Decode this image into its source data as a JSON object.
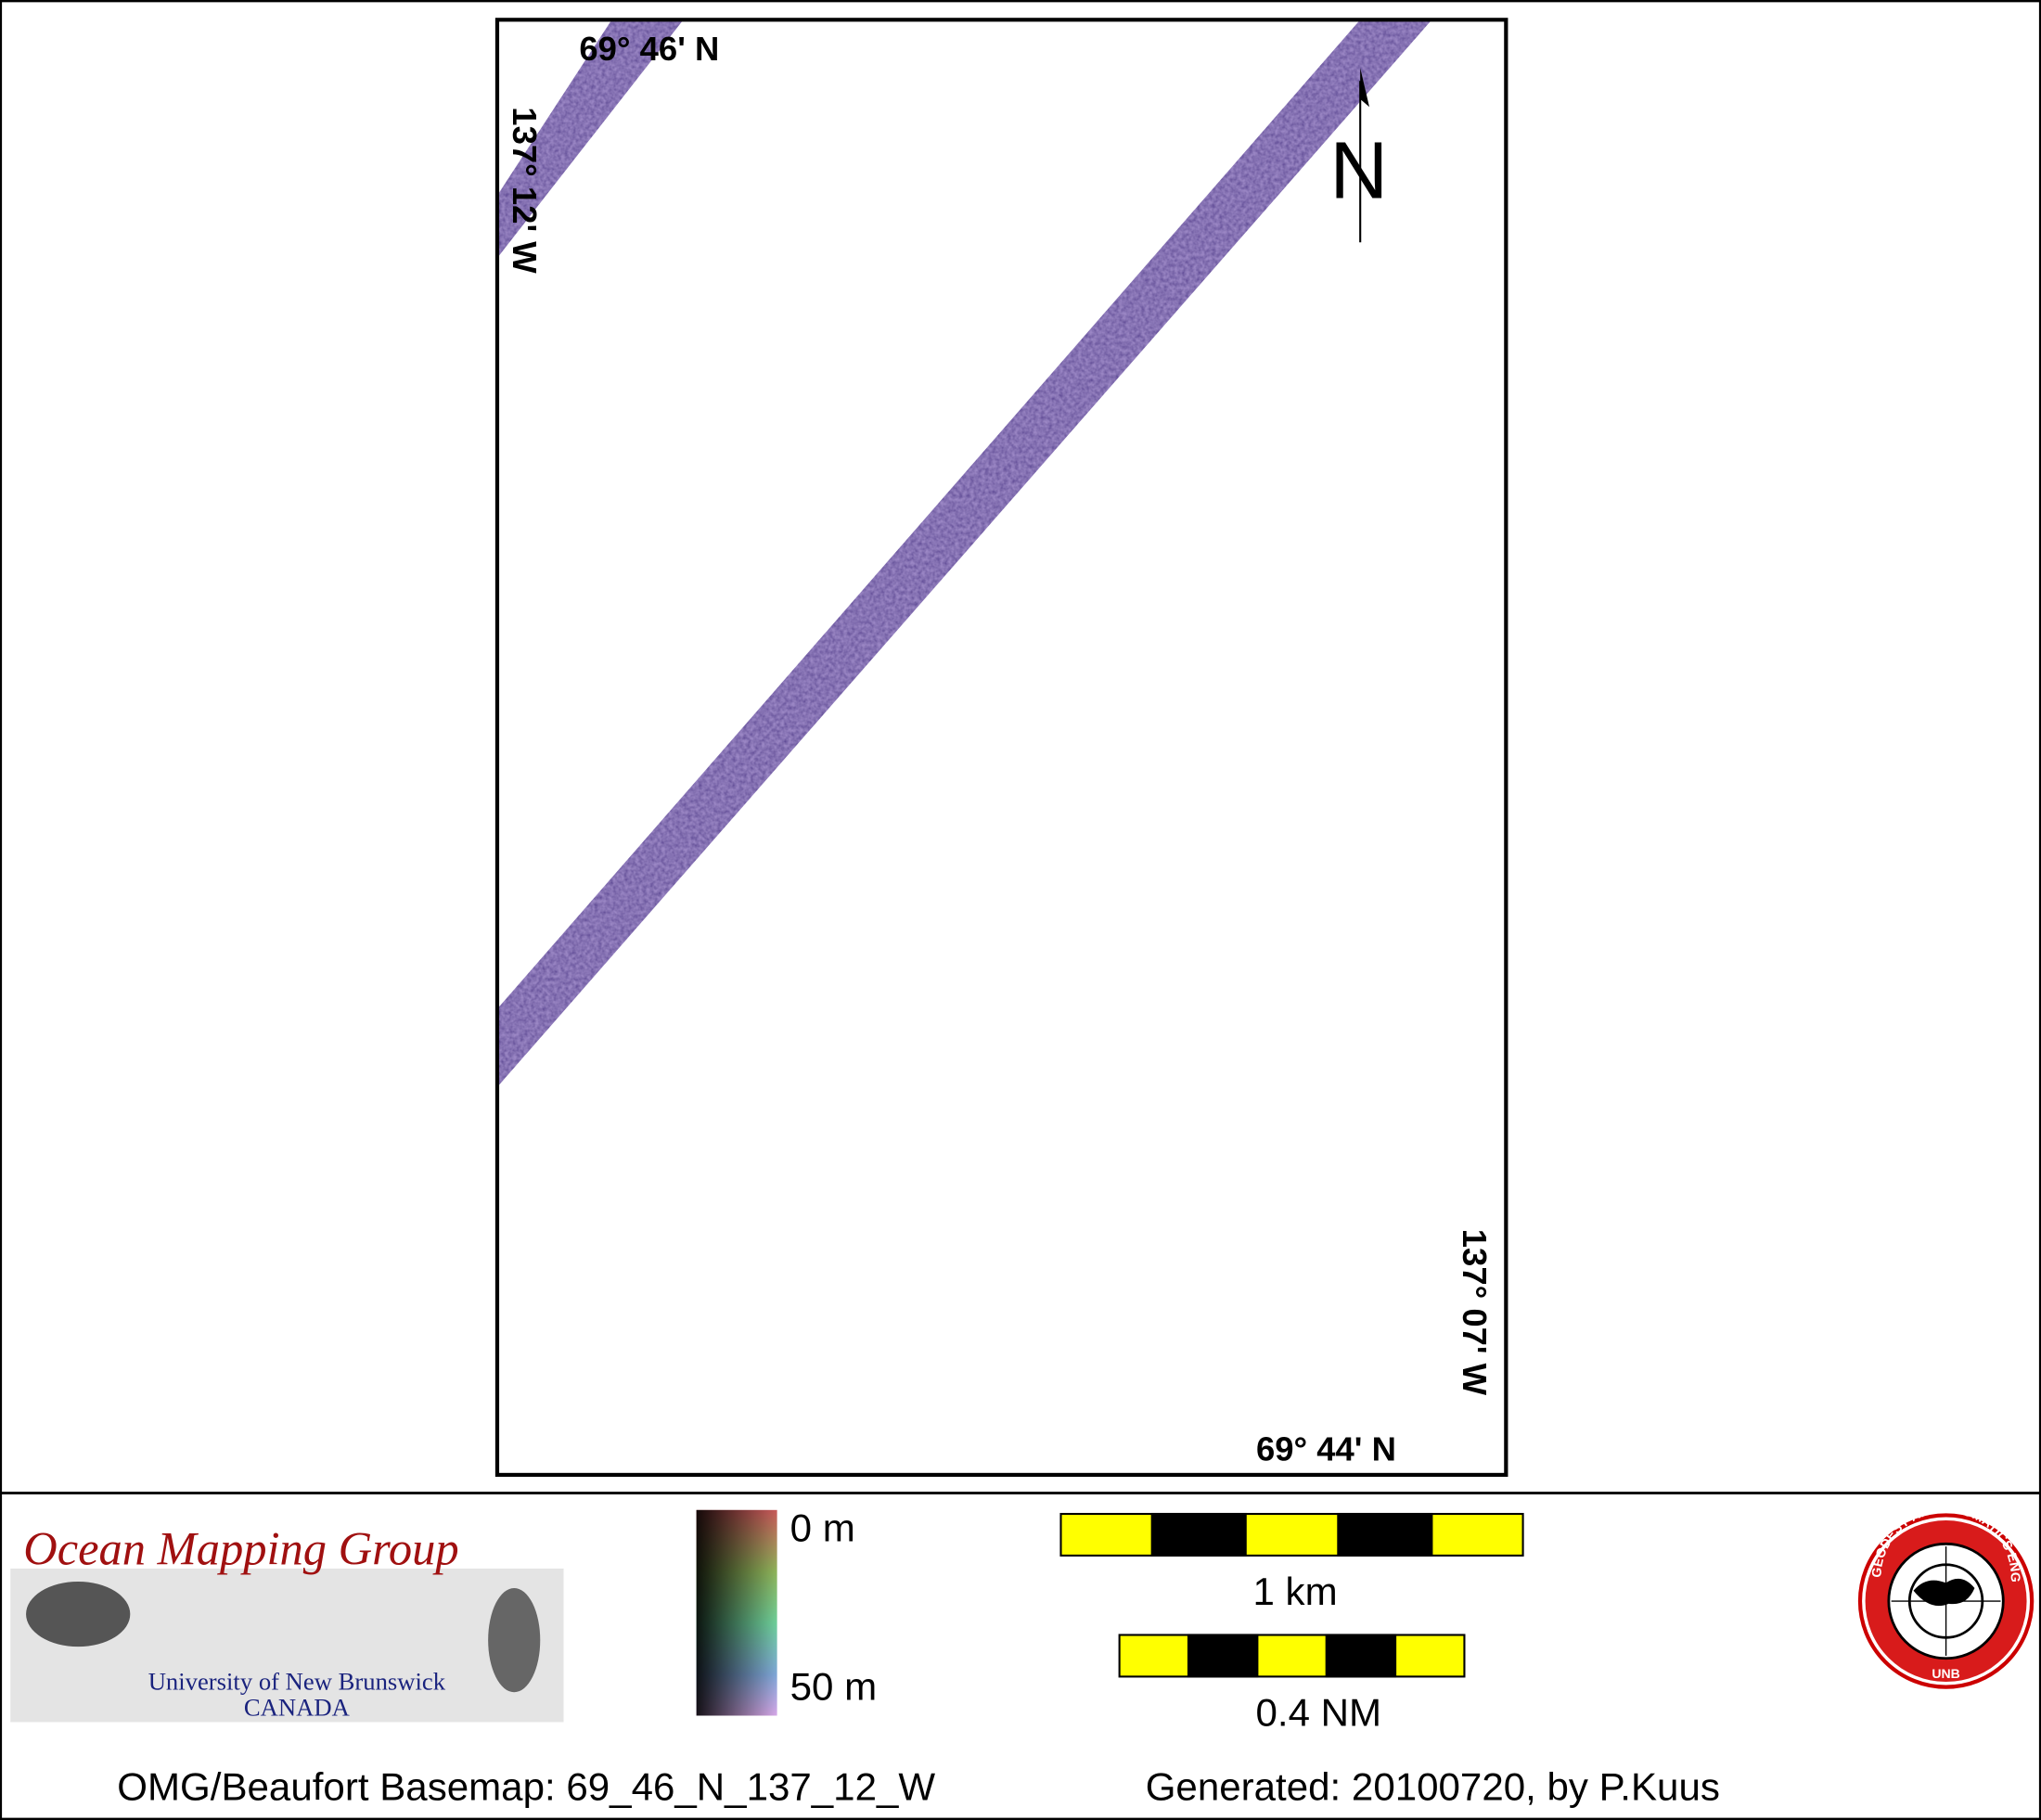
{
  "map": {
    "lat_top": "69° 46' N",
    "lon_left": "137° 12' W",
    "lon_right": "137° 07' W",
    "lat_bottom": "69° 44' N",
    "north": "N"
  },
  "legend": {
    "org": "Ocean Mapping Group",
    "university": "University of New Brunswick",
    "country": "CANADA",
    "depth_top": "0 m",
    "depth_bottom": "50 m",
    "scale_km": "1 km",
    "scale_nm": "0.4 NM",
    "seal_text": "GEODESY AND GEOMATICS ENGINEERING",
    "seal_abbr": "UNB"
  },
  "footer": {
    "basemap": "OMG/Beaufort Basemap: 69_46_N_137_12_W",
    "generated": "Generated: 20100720, by P.Kuus"
  }
}
